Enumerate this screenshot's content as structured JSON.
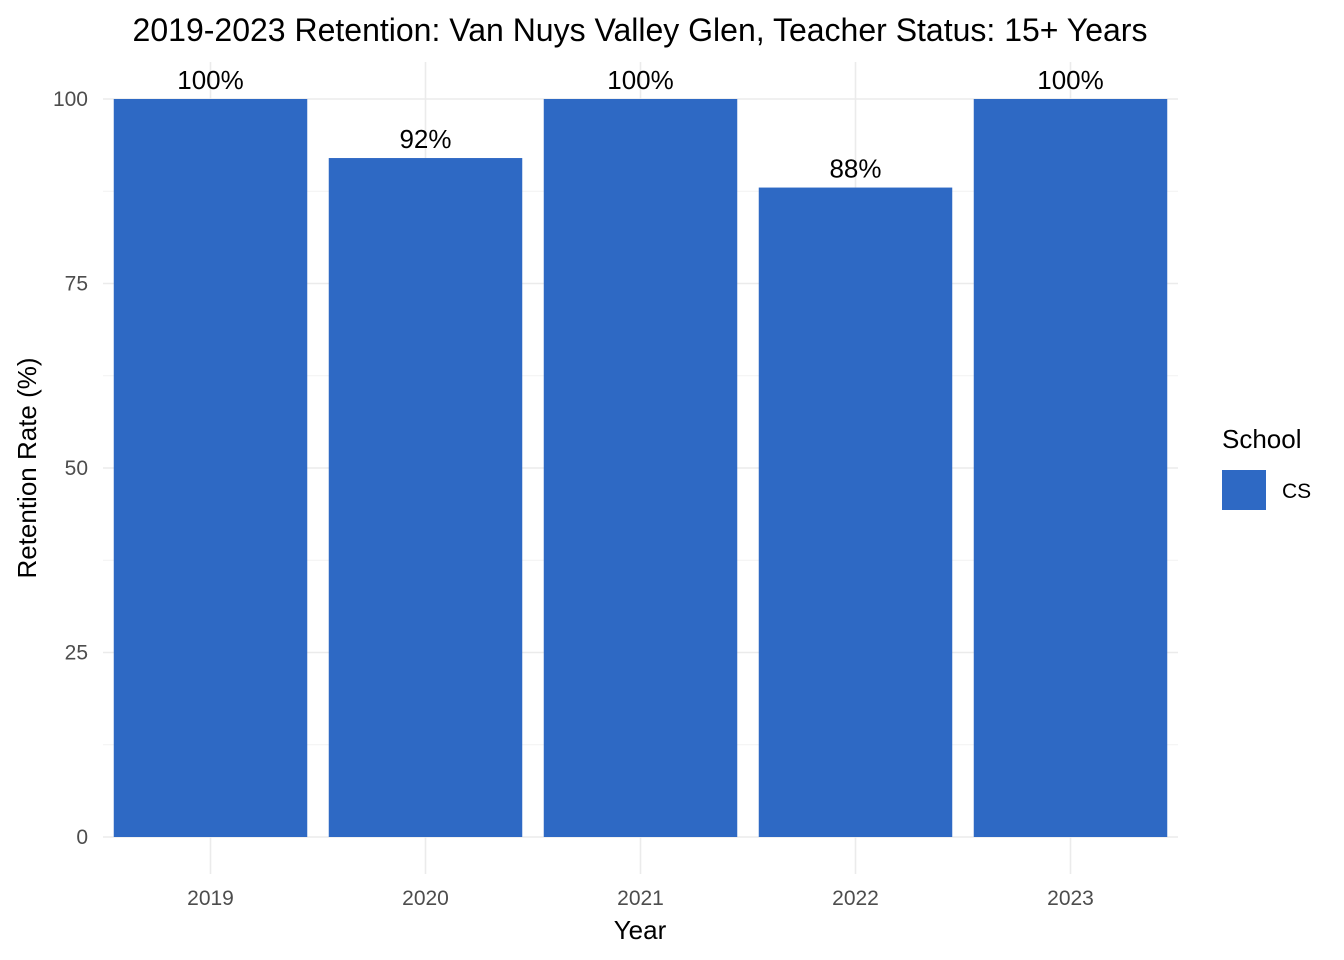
{
  "chart_data": {
    "type": "bar",
    "title": "2019-2023 Retention: Van Nuys Valley Glen, Teacher Status: 15+ Years",
    "xlabel": "Year",
    "ylabel": "Retention Rate (%)",
    "categories": [
      "2019",
      "2020",
      "2021",
      "2022",
      "2023"
    ],
    "series": [
      {
        "name": "CS",
        "values": [
          100,
          92,
          100,
          88,
          100
        ],
        "labels": [
          "100%",
          "92%",
          "100%",
          "88%",
          "100%"
        ],
        "color": "#2e69c4"
      }
    ],
    "ylim": [
      0,
      100
    ],
    "yticks": [
      0,
      25,
      50,
      75,
      100
    ],
    "grid": true,
    "legend": {
      "title": "School",
      "position": "right"
    }
  }
}
